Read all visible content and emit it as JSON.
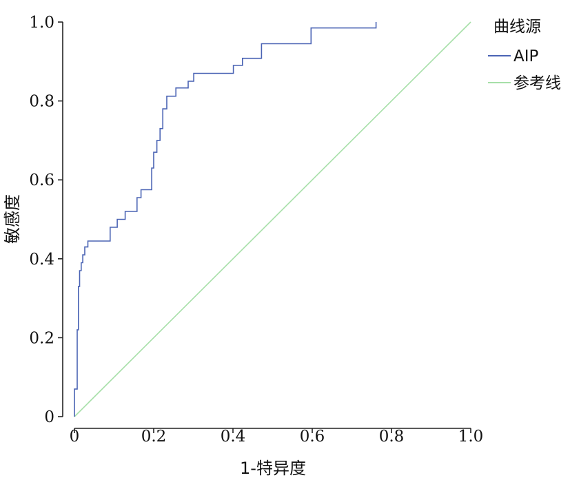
{
  "chart_data": {
    "type": "line",
    "title": "",
    "xlabel": "1-特异度",
    "ylabel": "敏感度",
    "xlim": [
      0,
      1
    ],
    "ylim": [
      0,
      1
    ],
    "xticks": [
      0,
      0.2,
      0.4,
      0.6,
      0.8,
      1.0
    ],
    "yticks": [
      0,
      0.2,
      0.4,
      0.6,
      0.8,
      1.0
    ],
    "xtick_labels": [
      "0",
      "0.2",
      "0.4",
      "0.6",
      "0.8",
      "1.0"
    ],
    "ytick_labels": [
      "0",
      "0.2",
      "0.4",
      "0.6",
      "0.8",
      "1.0"
    ],
    "grid": false,
    "legend": {
      "title": "曲线源",
      "placement": "top-right",
      "entries": [
        "AIP",
        "参考线"
      ]
    },
    "series": [
      {
        "name": "AIP",
        "color": "#4a63b4",
        "x": [
          0.0,
          0.0,
          0.007,
          0.007,
          0.01,
          0.01,
          0.013,
          0.013,
          0.017,
          0.017,
          0.021,
          0.021,
          0.026,
          0.026,
          0.034,
          0.034,
          0.042,
          0.042,
          0.09,
          0.09,
          0.108,
          0.108,
          0.128,
          0.128,
          0.158,
          0.158,
          0.168,
          0.168,
          0.195,
          0.195,
          0.2,
          0.2,
          0.208,
          0.208,
          0.216,
          0.216,
          0.223,
          0.223,
          0.233,
          0.233,
          0.256,
          0.256,
          0.287,
          0.287,
          0.301,
          0.301,
          0.325,
          0.325,
          0.401,
          0.401,
          0.424,
          0.424,
          0.472,
          0.472,
          0.597,
          0.597,
          0.761,
          0.761
        ],
        "y": [
          0.0,
          0.07,
          0.07,
          0.22,
          0.22,
          0.33,
          0.33,
          0.37,
          0.37,
          0.39,
          0.39,
          0.41,
          0.41,
          0.43,
          0.43,
          0.445,
          0.445,
          0.445,
          0.445,
          0.48,
          0.48,
          0.5,
          0.5,
          0.52,
          0.52,
          0.555,
          0.555,
          0.575,
          0.575,
          0.63,
          0.63,
          0.67,
          0.67,
          0.7,
          0.7,
          0.73,
          0.73,
          0.78,
          0.78,
          0.812,
          0.812,
          0.833,
          0.833,
          0.85,
          0.85,
          0.87,
          0.87,
          0.87,
          0.87,
          0.89,
          0.89,
          0.908,
          0.908,
          0.945,
          0.945,
          0.985,
          0.985,
          1.0
        ]
      },
      {
        "name": "参考线",
        "color": "#a6dfa8",
        "x": [
          0,
          1
        ],
        "y": [
          0,
          1
        ]
      }
    ]
  }
}
